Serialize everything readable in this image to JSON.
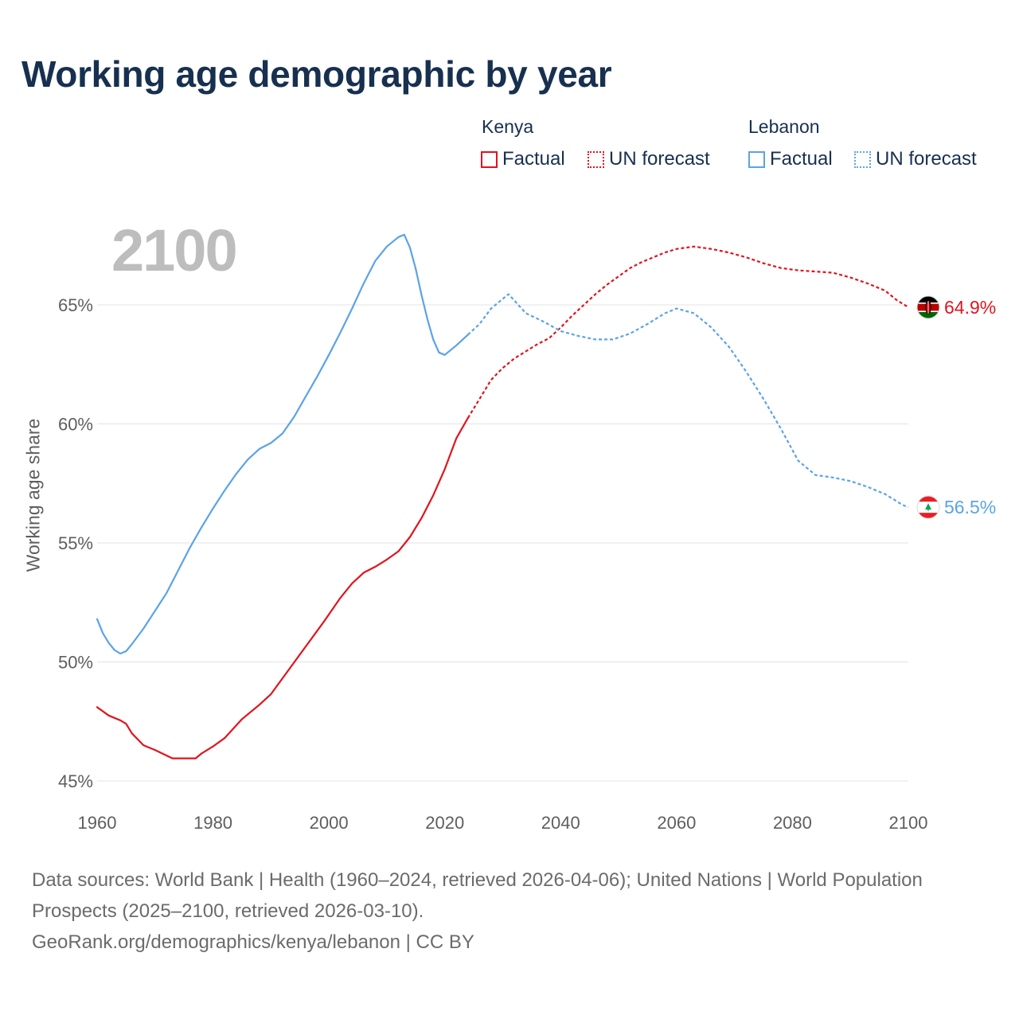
{
  "title": "Working age demographic by year",
  "year_label": "2100",
  "legend": {
    "groups": [
      {
        "name": "Kenya",
        "color": "#e0141e",
        "items": [
          "Factual",
          "UN forecast"
        ]
      },
      {
        "name": "Lebanon",
        "color": "#5ba3e6",
        "items": [
          "Factual",
          "UN forecast"
        ]
      }
    ]
  },
  "footer": {
    "line1": "Data sources: World Bank | Health (1960–2024, retrieved 2026-04-06); United Nations | World Population Prospects (2025–2100, retrieved 2026-03-10).",
    "line2": "GeoRank.org/demographics/kenya/lebanon | CC BY"
  },
  "chart_data": {
    "type": "line",
    "title": "Working age demographic by year",
    "xlabel": "",
    "ylabel": "Working age share",
    "xlim": [
      1960,
      2100
    ],
    "ylim": [
      45,
      68.5
    ],
    "x_ticks": [
      1960,
      1980,
      2000,
      2020,
      2040,
      2060,
      2080,
      2100
    ],
    "y_ticks": [
      45,
      50,
      55,
      60,
      65
    ],
    "y_tick_labels": [
      "45%",
      "50%",
      "55%",
      "60%",
      "65%"
    ],
    "grid": true,
    "forecast_start": 2024,
    "series": [
      {
        "name": "Kenya",
        "color": "#e0141e",
        "end_label": "64.9%",
        "flag": "kenya-flag",
        "points": [
          [
            1960,
            48.1
          ],
          [
            1962,
            47.75
          ],
          [
            1964,
            47.55
          ],
          [
            1965,
            47.4
          ],
          [
            1966,
            47.0
          ],
          [
            1968,
            46.5
          ],
          [
            1970,
            46.3
          ],
          [
            1973,
            45.95
          ],
          [
            1975,
            45.95
          ],
          [
            1977,
            45.95
          ],
          [
            1978,
            46.15
          ],
          [
            1980,
            46.45
          ],
          [
            1982,
            46.8
          ],
          [
            1985,
            47.6
          ],
          [
            1988,
            48.2
          ],
          [
            1990,
            48.65
          ],
          [
            1993,
            49.65
          ],
          [
            1996,
            50.65
          ],
          [
            1999,
            51.65
          ],
          [
            2002,
            52.7
          ],
          [
            2004,
            53.3
          ],
          [
            2006,
            53.75
          ],
          [
            2008,
            54.0
          ],
          [
            2010,
            54.3
          ],
          [
            2012,
            54.65
          ],
          [
            2014,
            55.25
          ],
          [
            2016,
            56.05
          ],
          [
            2018,
            57.0
          ],
          [
            2020,
            58.1
          ],
          [
            2022,
            59.4
          ],
          [
            2024,
            60.25
          ],
          [
            2026,
            61.05
          ],
          [
            2028,
            61.85
          ],
          [
            2030,
            62.35
          ],
          [
            2032,
            62.75
          ],
          [
            2034,
            63.05
          ],
          [
            2036,
            63.35
          ],
          [
            2038,
            63.6
          ],
          [
            2040,
            64.05
          ],
          [
            2042,
            64.55
          ],
          [
            2044,
            65.0
          ],
          [
            2046,
            65.45
          ],
          [
            2048,
            65.85
          ],
          [
            2050,
            66.2
          ],
          [
            2052,
            66.55
          ],
          [
            2054,
            66.8
          ],
          [
            2056,
            67.0
          ],
          [
            2058,
            67.2
          ],
          [
            2060,
            67.35
          ],
          [
            2063,
            67.45
          ],
          [
            2066,
            67.35
          ],
          [
            2069,
            67.2
          ],
          [
            2072,
            67.0
          ],
          [
            2075,
            66.75
          ],
          [
            2078,
            66.55
          ],
          [
            2081,
            66.45
          ],
          [
            2084,
            66.4
          ],
          [
            2087,
            66.35
          ],
          [
            2090,
            66.15
          ],
          [
            2093,
            65.9
          ],
          [
            2096,
            65.6
          ],
          [
            2098,
            65.2
          ],
          [
            2100,
            64.9
          ]
        ]
      },
      {
        "name": "Lebanon",
        "color": "#5ba3e6",
        "end_label": "56.5%",
        "flag": "lebanon-flag",
        "points": [
          [
            1960,
            51.8
          ],
          [
            1961,
            51.2
          ],
          [
            1962,
            50.8
          ],
          [
            1963,
            50.5
          ],
          [
            1964,
            50.35
          ],
          [
            1965,
            50.45
          ],
          [
            1966,
            50.75
          ],
          [
            1968,
            51.4
          ],
          [
            1970,
            52.15
          ],
          [
            1972,
            52.9
          ],
          [
            1974,
            53.85
          ],
          [
            1976,
            54.8
          ],
          [
            1978,
            55.65
          ],
          [
            1980,
            56.45
          ],
          [
            1982,
            57.2
          ],
          [
            1984,
            57.9
          ],
          [
            1986,
            58.5
          ],
          [
            1988,
            58.95
          ],
          [
            1990,
            59.2
          ],
          [
            1992,
            59.6
          ],
          [
            1994,
            60.3
          ],
          [
            1996,
            61.15
          ],
          [
            1998,
            62.0
          ],
          [
            2000,
            62.9
          ],
          [
            2002,
            63.85
          ],
          [
            2004,
            64.85
          ],
          [
            2006,
            65.9
          ],
          [
            2008,
            66.85
          ],
          [
            2010,
            67.45
          ],
          [
            2012,
            67.85
          ],
          [
            2013,
            67.95
          ],
          [
            2014,
            67.4
          ],
          [
            2015,
            66.5
          ],
          [
            2016,
            65.4
          ],
          [
            2017,
            64.4
          ],
          [
            2018,
            63.55
          ],
          [
            2019,
            63.0
          ],
          [
            2020,
            62.9
          ],
          [
            2022,
            63.3
          ],
          [
            2024,
            63.75
          ],
          [
            2026,
            64.2
          ],
          [
            2028,
            64.85
          ],
          [
            2031,
            65.45
          ],
          [
            2034,
            64.65
          ],
          [
            2037,
            64.3
          ],
          [
            2040,
            63.9
          ],
          [
            2043,
            63.7
          ],
          [
            2046,
            63.55
          ],
          [
            2049,
            63.55
          ],
          [
            2052,
            63.8
          ],
          [
            2055,
            64.2
          ],
          [
            2058,
            64.65
          ],
          [
            2060,
            64.85
          ],
          [
            2063,
            64.65
          ],
          [
            2066,
            64.05
          ],
          [
            2069,
            63.25
          ],
          [
            2072,
            62.2
          ],
          [
            2075,
            61.05
          ],
          [
            2078,
            59.8
          ],
          [
            2081,
            58.45
          ],
          [
            2084,
            57.85
          ],
          [
            2087,
            57.75
          ],
          [
            2090,
            57.6
          ],
          [
            2093,
            57.35
          ],
          [
            2096,
            57.05
          ],
          [
            2099,
            56.6
          ],
          [
            2100,
            56.5
          ]
        ]
      }
    ]
  }
}
